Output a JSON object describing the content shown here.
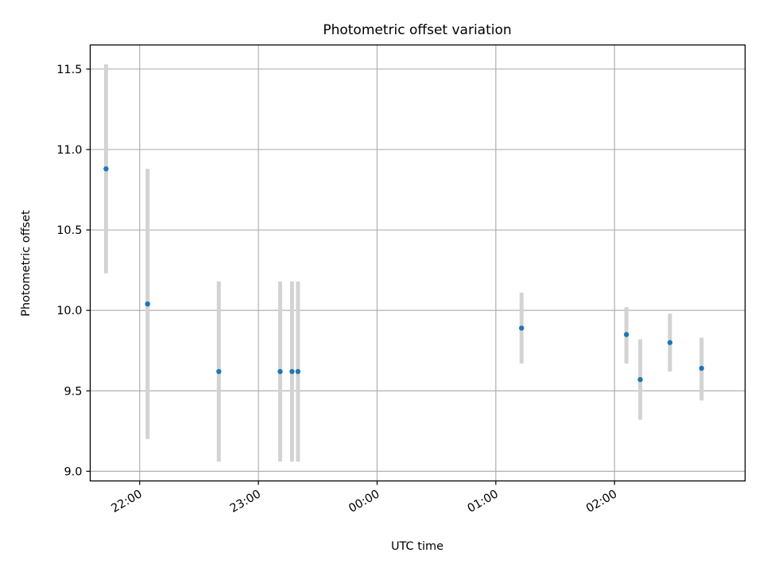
{
  "chart_data": {
    "type": "scatter",
    "title": "Photometric offset variation",
    "xlabel": "UTC time",
    "ylabel": "Photometric offset",
    "grid": true,
    "x_axis_kind": "time",
    "xlim": [
      "21:35",
      "03:06"
    ],
    "ylim": [
      8.94,
      11.65
    ],
    "x_ticks": [
      "22:00",
      "23:00",
      "00:00",
      "01:00",
      "02:00"
    ],
    "y_ticks": [
      "9.0",
      "9.5",
      "10.0",
      "10.5",
      "11.0",
      "11.5"
    ],
    "points": [
      {
        "time": "21:43",
        "y": 10.88,
        "y_low": 10.23,
        "y_high": 11.53
      },
      {
        "time": "22:04",
        "y": 10.04,
        "y_low": 9.2,
        "y_high": 10.88
      },
      {
        "time": "22:40",
        "y": 9.62,
        "y_low": 9.06,
        "y_high": 10.18
      },
      {
        "time": "23:11",
        "y": 9.62,
        "y_low": 9.06,
        "y_high": 10.18
      },
      {
        "time": "23:17",
        "y": 9.62,
        "y_low": 9.06,
        "y_high": 10.18
      },
      {
        "time": "23:20",
        "y": 9.62,
        "y_low": 9.06,
        "y_high": 10.18
      },
      {
        "time": "01:13",
        "y": 9.89,
        "y_low": 9.67,
        "y_high": 10.11
      },
      {
        "time": "02:06",
        "y": 9.85,
        "y_low": 9.67,
        "y_high": 10.02
      },
      {
        "time": "02:13",
        "y": 9.57,
        "y_low": 9.32,
        "y_high": 9.82
      },
      {
        "time": "02:28",
        "y": 9.8,
        "y_low": 9.62,
        "y_high": 9.98
      },
      {
        "time": "02:44",
        "y": 9.64,
        "y_low": 9.44,
        "y_high": 9.83
      }
    ],
    "colors": {
      "marker": "#1f77b4",
      "errorbar": "#d3d3d3",
      "grid": "#b0b0b0",
      "axes": "#000000"
    }
  }
}
